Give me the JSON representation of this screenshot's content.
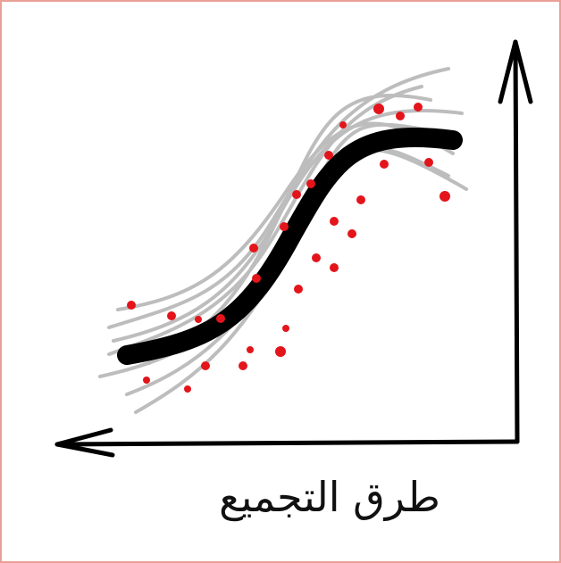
{
  "caption": "طرق التجميع"
}
